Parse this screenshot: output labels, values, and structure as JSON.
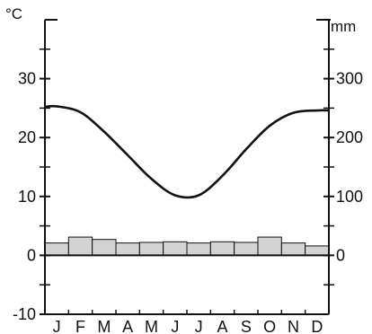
{
  "chart_data": {
    "type": "climograph",
    "categories": [
      "J",
      "F",
      "M",
      "A",
      "M",
      "J",
      "J",
      "A",
      "S",
      "O",
      "N",
      "D"
    ],
    "left_axis": {
      "unit": "°C",
      "ylim": [
        -10,
        40
      ],
      "tick_labels": [
        "-10",
        "0",
        "10",
        "20",
        "30"
      ],
      "tick_values": [
        -10,
        0,
        10,
        20,
        30
      ],
      "minor_tick_values": [
        -5,
        5,
        15,
        25,
        35
      ]
    },
    "right_axis": {
      "unit": "mm",
      "ylim": [
        -100,
        400
      ],
      "tick_labels": [
        "0",
        "100",
        "200",
        "300"
      ],
      "tick_values": [
        0,
        100,
        200,
        300
      ],
      "minor_tick_values": [
        -50,
        50,
        150,
        250,
        350
      ]
    },
    "series": [
      {
        "type": "line",
        "axis": "left",
        "values": [
          25.3,
          24.3,
          21.0,
          17.0,
          13.0,
          10.2,
          10.2,
          13.5,
          18.0,
          22.0,
          24.2,
          24.6
        ]
      },
      {
        "type": "bar",
        "axis": "right",
        "values": [
          21,
          31,
          27,
          21,
          22,
          23,
          21,
          23,
          22,
          31,
          21,
          16
        ]
      }
    ],
    "colors": {
      "bars": "#d3d3d3",
      "line": "#111111",
      "axes": "#111111"
    }
  }
}
